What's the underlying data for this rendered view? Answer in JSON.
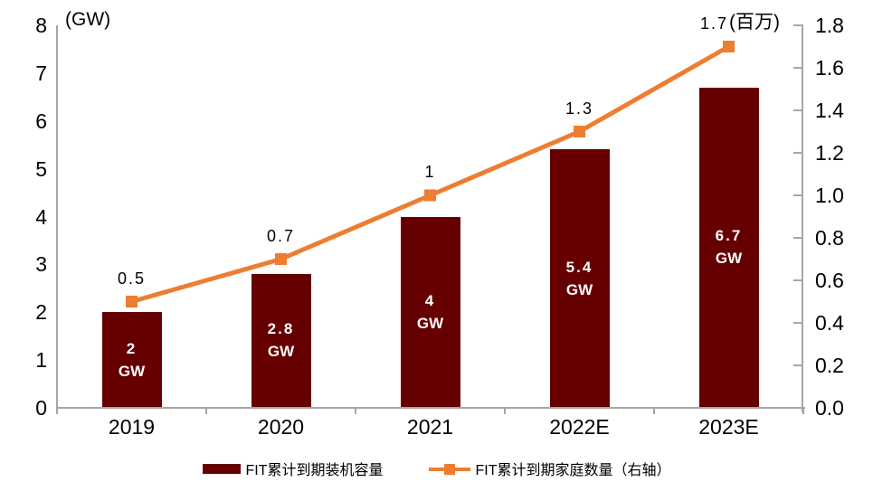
{
  "chart_data": {
    "type": "combo-bar-line",
    "categories": [
      "2019",
      "2020",
      "2021",
      "2022E",
      "2023E"
    ],
    "series": [
      {
        "name": "FIT累计到期装机容量",
        "type": "bar",
        "axis": "left",
        "values": [
          2,
          2.8,
          4,
          5.4,
          6.7
        ],
        "display_values": [
          "2",
          "2.8",
          "4",
          "5.4",
          "6.7"
        ],
        "unit": "GW"
      },
      {
        "name": "FIT累计到期家庭数量（右轴）",
        "type": "line",
        "axis": "right",
        "values": [
          0.5,
          0.7,
          1,
          1.3,
          1.7
        ],
        "display_values": [
          "0.5",
          "0.7",
          "1",
          "1.3",
          "1.7"
        ]
      }
    ],
    "left_axis": {
      "title": "(GW)",
      "min": 0,
      "max": 8,
      "step": 1,
      "ticks": [
        "0",
        "1",
        "2",
        "3",
        "4",
        "5",
        "6",
        "7",
        "8"
      ]
    },
    "right_axis": {
      "title": "(百万)",
      "min": 0,
      "max": 1.8,
      "step": 0.2,
      "ticks": [
        "0.0",
        "0.2",
        "0.4",
        "0.6",
        "0.8",
        "1.0",
        "1.2",
        "1.4",
        "1.6",
        "1.8"
      ]
    },
    "legend_position": "bottom",
    "grid": false
  },
  "colors": {
    "bar": "#660000",
    "line": "#ED7D31",
    "marker": "#ED7D31",
    "axis": "#A6A6A6",
    "bar_label": "#FFFFFF",
    "text": "#000000"
  }
}
